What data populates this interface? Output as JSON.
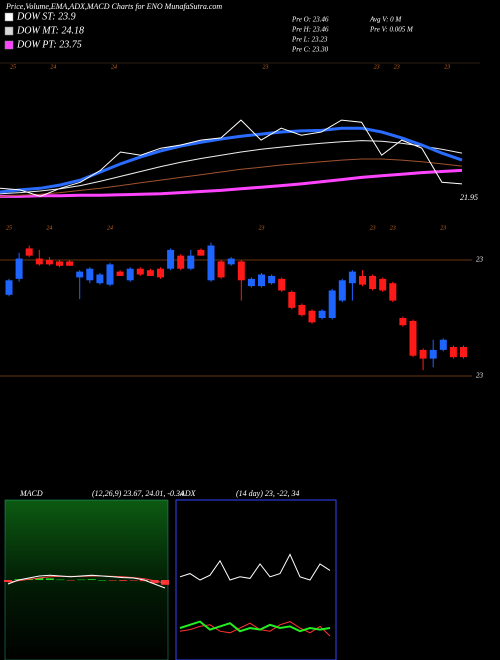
{
  "header": {
    "title": "Price,Volume,EMA,ADX,MACD Charts for ENO MunafaSutra.com",
    "legend": [
      {
        "name": "DOW ST: 23.9",
        "color": "#ffffff"
      },
      {
        "name": "DOW MT: 24.18",
        "color": "#d8d8d8"
      },
      {
        "name": "DOW PT: 23.75",
        "color": "#ff44ff"
      }
    ],
    "info": [
      [
        "Pre  O: 23.46",
        "Avg V: 0  M"
      ],
      [
        "Pre  H: 23.46",
        "Pre  V: 0.005 M"
      ],
      [
        "Pre  L: 23.23"
      ],
      [
        "Pre  C: 23.30"
      ]
    ]
  },
  "chart_data": [
    {
      "type": "line",
      "ylim": [
        21.95,
        24.5
      ],
      "yticks": [
        21.95
      ],
      "series": [
        {
          "color": "#ff44ff",
          "line_width": 3,
          "values": [
            21.98,
            21.98,
            21.99,
            21.99,
            22.0,
            22.0,
            22.01,
            22.02,
            22.03,
            22.05,
            22.07,
            22.09,
            22.12,
            22.15,
            22.18,
            22.21,
            22.25,
            22.29,
            22.33,
            22.36,
            22.39,
            22.42,
            22.44,
            22.46
          ]
        },
        {
          "color": "#a0522d",
          "line_width": 1,
          "values": [
            21.98,
            22.0,
            22.02,
            22.05,
            22.09,
            22.13,
            22.18,
            22.23,
            22.28,
            22.33,
            22.38,
            22.43,
            22.48,
            22.52,
            22.56,
            22.59,
            22.62,
            22.65,
            22.67,
            22.67,
            22.65,
            22.62,
            22.58,
            22.54
          ]
        },
        {
          "color": "#eeeeee",
          "line_width": 1,
          "values": [
            22.03,
            22.05,
            22.08,
            22.12,
            22.18,
            22.26,
            22.35,
            22.44,
            22.53,
            22.61,
            22.68,
            22.74,
            22.8,
            22.85,
            22.89,
            22.93,
            22.96,
            22.99,
            23.01,
            23.0,
            22.96,
            22.91,
            22.85,
            22.78
          ]
        },
        {
          "color": "#2a6cff",
          "line_width": 3,
          "values": [
            22.06,
            22.1,
            22.13,
            22.19,
            22.28,
            22.43,
            22.58,
            22.71,
            22.82,
            22.91,
            22.98,
            23.04,
            23.09,
            23.13,
            23.17,
            23.19,
            23.2,
            23.24,
            23.24,
            23.17,
            23.06,
            22.93,
            22.78,
            22.65
          ]
        },
        {
          "color": "#ffffff",
          "line_width": 1,
          "values": [
            22.13,
            22.1,
            21.98,
            22.13,
            22.24,
            22.46,
            22.8,
            22.74,
            22.87,
            22.93,
            23.02,
            23.06,
            23.39,
            23.02,
            23.24,
            23.11,
            23.17,
            23.39,
            23.35,
            22.74,
            23.02,
            22.87,
            22.24,
            22.21
          ]
        }
      ]
    },
    {
      "type": "candlestick",
      "ylim": [
        22.6,
        23.4
      ],
      "yticks": [
        {
          "value": 22.6,
          "label": "23"
        },
        {
          "value": 23.4,
          "label": "23"
        }
      ],
      "up_color": "#1e64ff",
      "down_color": "#ff1a1a",
      "categories": [
        "25",
        null,
        null,
        null,
        "24",
        null,
        null,
        null,
        null,
        null,
        "24",
        null,
        null,
        null,
        null,
        null,
        null,
        null,
        null,
        null,
        null,
        null,
        null,
        null,
        null,
        "23",
        null,
        null,
        null,
        null,
        null,
        null,
        null,
        null,
        null,
        null,
        "23",
        null,
        "23",
        null,
        null,
        null,
        null,
        "23",
        null,
        null
      ],
      "open": [
        23.16,
        23.27,
        23.48,
        23.41,
        23.4,
        23.39,
        23.39,
        23.28,
        23.26,
        23.24,
        23.23,
        23.32,
        23.26,
        23.34,
        23.33,
        23.34,
        23.34,
        23.43,
        23.34,
        23.47,
        23.26,
        23.39,
        23.37,
        23.39,
        23.22,
        23.22,
        23.24,
        23.27,
        23.18,
        23.09,
        23.05,
        23.0,
        23.0,
        23.12,
        23.24,
        23.29,
        23.29,
        23.27,
        23.24,
        23.0,
        22.98,
        22.78,
        22.72,
        22.78,
        22.8,
        22.8
      ],
      "high": [
        23.27,
        23.45,
        23.5,
        23.47,
        23.42,
        23.4,
        23.4,
        23.33,
        23.35,
        23.31,
        23.38,
        23.33,
        23.35,
        23.35,
        23.34,
        23.35,
        23.48,
        23.44,
        23.47,
        23.48,
        23.52,
        23.4,
        23.42,
        23.4,
        23.28,
        23.31,
        23.3,
        23.28,
        23.19,
        23.1,
        23.06,
        23.06,
        23.2,
        23.27,
        23.33,
        23.33,
        23.3,
        23.28,
        23.25,
        23.01,
        22.99,
        22.79,
        22.85,
        22.86,
        22.81,
        22.81
      ],
      "low": [
        23.15,
        23.25,
        23.42,
        23.36,
        23.36,
        23.35,
        23.36,
        23.13,
        23.24,
        23.23,
        23.22,
        23.29,
        23.25,
        23.29,
        23.29,
        23.27,
        23.33,
        23.33,
        23.33,
        23.43,
        23.25,
        23.27,
        23.36,
        23.12,
        23.21,
        23.21,
        23.23,
        23.18,
        23.06,
        23.01,
        22.96,
        22.99,
        22.99,
        23.11,
        23.12,
        23.22,
        23.19,
        23.18,
        23.11,
        22.94,
        22.73,
        22.64,
        22.66,
        22.77,
        22.72,
        22.72
      ],
      "close": [
        23.26,
        23.41,
        23.43,
        23.37,
        23.37,
        23.36,
        23.36,
        23.32,
        23.34,
        23.3,
        23.37,
        23.29,
        23.34,
        23.3,
        23.29,
        23.28,
        23.47,
        23.34,
        23.43,
        23.43,
        23.5,
        23.28,
        23.41,
        23.26,
        23.27,
        23.3,
        23.29,
        23.19,
        23.07,
        23.02,
        22.97,
        23.05,
        23.19,
        23.26,
        23.32,
        23.23,
        23.2,
        23.19,
        23.12,
        22.95,
        22.74,
        22.72,
        22.78,
        22.85,
        22.73,
        22.73
      ]
    },
    {
      "type": "macd",
      "title": "MACD",
      "subtitle": "(12,26,9) 23.67, 24.01, -0.34",
      "ylim": [
        -2,
        2
      ],
      "series": [
        {
          "color": "#ff4444",
          "values": [
            -0.05,
            -0.02,
            0.02,
            0.05,
            0.08,
            0.09,
            0.09,
            0.09,
            0.1,
            0.1,
            0.09,
            0.08,
            0.06,
            0.03,
            -0.02,
            -0.08
          ]
        },
        {
          "color": "#ffffff",
          "values": [
            -0.1,
            0.0,
            0.05,
            0.1,
            0.12,
            0.1,
            0.08,
            0.1,
            0.12,
            0.1,
            0.08,
            0.06,
            0.05,
            0.0,
            -0.1,
            -0.2
          ]
        }
      ],
      "histogram": [
        -0.05,
        0.02,
        0.03,
        0.05,
        0.04,
        0.01,
        -0.01,
        0.01,
        0.02,
        0.0,
        -0.01,
        -0.02,
        -0.01,
        -0.03,
        -0.08,
        -0.12
      ]
    },
    {
      "type": "adx",
      "title": "ADX",
      "subtitle": "(14 day) 23, -22, 34",
      "ylim": [
        0,
        100
      ],
      "series": [
        {
          "color": "#ffffff",
          "values": [
            52,
            54,
            50,
            53,
            62,
            50,
            52,
            51,
            60,
            52,
            54,
            66,
            52,
            50,
            60,
            56
          ]
        },
        {
          "color": "#ff3333",
          "values": [
            18,
            19,
            21,
            22,
            18,
            17,
            20,
            23,
            19,
            18,
            22,
            24,
            20,
            17,
            21,
            15
          ]
        },
        {
          "color": "#22ee22",
          "values": [
            20,
            22,
            24,
            19,
            21,
            23,
            18,
            20,
            19,
            22,
            20,
            21,
            18,
            20,
            19,
            20
          ]
        }
      ]
    }
  ]
}
